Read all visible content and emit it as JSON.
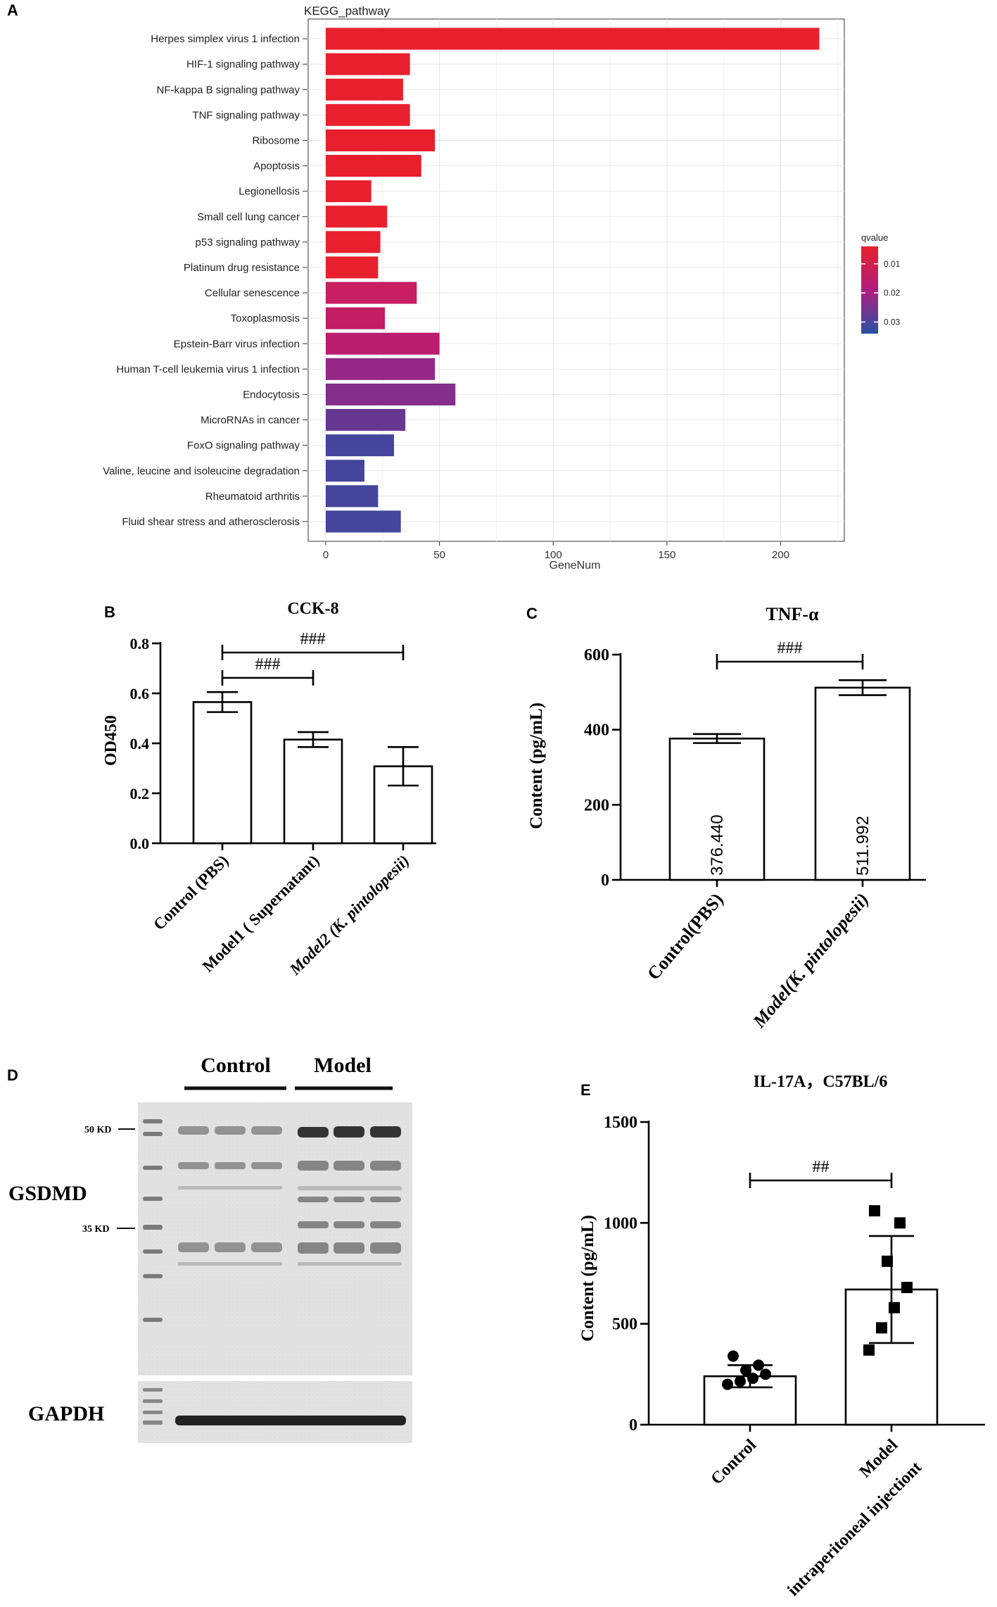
{
  "panel_labels": {
    "A": "A",
    "B": "B",
    "C": "C",
    "D": "D",
    "E": "E"
  },
  "chart_data": [
    {
      "panel": "A",
      "type": "bar",
      "orientation": "horizontal",
      "title": "KEGG_pathway",
      "xlabel": "GeneNum",
      "ylabel": "",
      "xlim": [
        0,
        228
      ],
      "xticks": [
        0,
        50,
        100,
        150,
        200
      ],
      "grid": true,
      "categories": [
        "Herpes simplex virus 1 infection",
        "HIF-1 signaling pathway",
        "NF-kappa B signaling pathway",
        "TNF signaling pathway",
        "Ribosome",
        "Apoptosis",
        "Legionellosis",
        "Small cell lung cancer",
        "p53 signaling pathway",
        "Platinum drug resistance",
        "Cellular senescence",
        "Toxoplasmosis",
        "Epstein-Barr virus infection",
        "Human T-cell leukemia virus 1 infection",
        "Endocytosis",
        "MicroRNAs in cancer",
        "FoxO signaling pathway",
        "Valine, leucine and isoleucine degradation",
        "Rheumatoid arthritis",
        "Fluid shear stress and atherosclerosis"
      ],
      "values": [
        217,
        37,
        34,
        37,
        48,
        42,
        20,
        27,
        24,
        23,
        40,
        26,
        50,
        48,
        57,
        35,
        30,
        17,
        23,
        33
      ],
      "qvalues": [
        0.004,
        0.004,
        0.004,
        0.004,
        0.004,
        0.004,
        0.004,
        0.004,
        0.004,
        0.004,
        0.013,
        0.014,
        0.016,
        0.022,
        0.024,
        0.027,
        0.031,
        0.031,
        0.031,
        0.031
      ],
      "legend": {
        "title": "qvalue",
        "ticks": [
          "0.01",
          "0.02",
          "0.03"
        ],
        "tick_values": [
          0.01,
          0.02,
          0.03
        ],
        "range": [
          0.004,
          0.034
        ],
        "colors": {
          "low": "#e8202e",
          "mid": "#b01d7e",
          "high": "#2850a4"
        },
        "position": "right"
      }
    },
    {
      "panel": "B",
      "type": "bar",
      "title": "CCK-8",
      "ylabel": "OD450",
      "ylim": [
        0,
        0.8
      ],
      "yticks": [
        "0.0",
        "0.2",
        "0.4",
        "0.6",
        "0.8"
      ],
      "categories": [
        "Control (PBS)",
        "Model1 ( Supernatant)",
        "Model2 (K. pintolopesii)"
      ],
      "values": [
        0.565,
        0.415,
        0.308
      ],
      "errors": [
        0.04,
        0.03,
        0.077
      ],
      "significance": [
        {
          "from": 0,
          "to": 1,
          "label": "###"
        },
        {
          "from": 0,
          "to": 2,
          "label": "###"
        }
      ]
    },
    {
      "panel": "C",
      "type": "bar",
      "title": "TNF-α",
      "ylabel": "Content (pg/mL)",
      "ylim": [
        0,
        600
      ],
      "yticks": [
        "0",
        "200",
        "400",
        "600"
      ],
      "categories": [
        "Control(PBS)",
        "Model(K. pintolopesii)"
      ],
      "values": [
        376.44,
        511.992
      ],
      "value_labels": [
        "376.440",
        "511.992"
      ],
      "errors": [
        12,
        20
      ],
      "significance": [
        {
          "from": 0,
          "to": 1,
          "label": "###"
        }
      ]
    },
    {
      "panel": "E",
      "type": "bar",
      "title": "IL-17A，C57BL/6",
      "ylabel": "Content (pg/mL)",
      "ylim": [
        0,
        1500
      ],
      "yticks": [
        "0",
        "500",
        "1000",
        "1500"
      ],
      "categories": [
        "Control",
        "Model\nintraperitoneal injectiont"
      ],
      "category_lines": [
        [
          "Control"
        ],
        [
          "Model",
          "intraperitoneal injectiont"
        ]
      ],
      "values": [
        240,
        670
      ],
      "errors": [
        55,
        265
      ],
      "points": [
        [
          200,
          215,
          230,
          250,
          270,
          295,
          340
        ],
        [
          370,
          480,
          580,
          680,
          810,
          1000,
          1060
        ]
      ],
      "markers": [
        "circle",
        "square"
      ],
      "significance": [
        {
          "from": 0,
          "to": 1,
          "label": "##"
        }
      ]
    }
  ],
  "blot": {
    "panel": "D",
    "groups": [
      "Control",
      "Model"
    ],
    "bands": [
      "GSDMD",
      "GAPDH"
    ],
    "markers": [
      "50 KD",
      "35 KD"
    ]
  }
}
